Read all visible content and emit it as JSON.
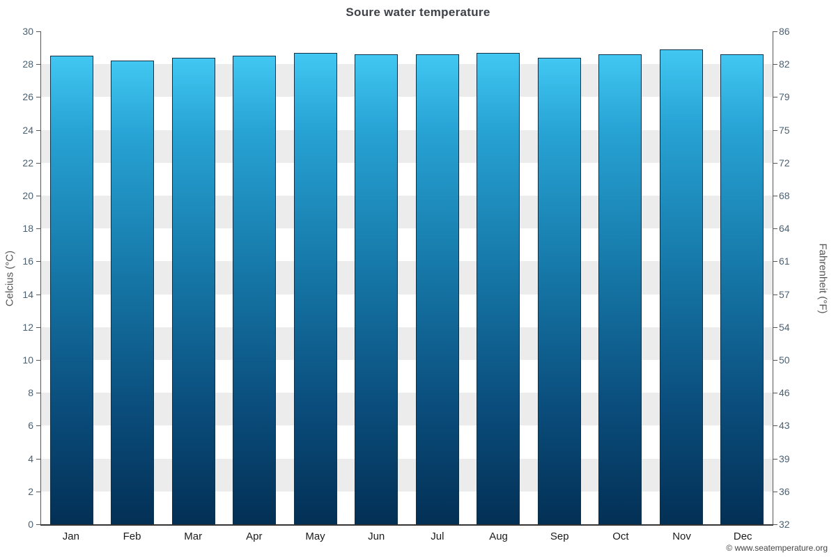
{
  "footer": "© www.seatemperature.org",
  "chart_data": {
    "type": "bar",
    "title": "Soure water temperature",
    "categories": [
      "Jan",
      "Feb",
      "Mar",
      "Apr",
      "May",
      "Jun",
      "Jul",
      "Aug",
      "Sep",
      "Oct",
      "Nov",
      "Dec"
    ],
    "values": [
      28.5,
      28.2,
      28.4,
      28.5,
      28.7,
      28.6,
      28.6,
      28.7,
      28.4,
      28.6,
      28.9,
      28.6
    ],
    "xlabel": "",
    "ylabel_left": "Celcius (°C)",
    "ylabel_right": "Fahrenheit (°F)",
    "ylim": [
      0,
      30
    ],
    "ytick_step": 2,
    "yticks_celsius": [
      0,
      2,
      4,
      6,
      8,
      10,
      12,
      14,
      16,
      18,
      20,
      22,
      24,
      26,
      28,
      30
    ],
    "yticks_fahrenheit": [
      32,
      36,
      39,
      43,
      46,
      50,
      54,
      57,
      61,
      64,
      68,
      72,
      75,
      79,
      82,
      86
    ],
    "grid": "horizontal-bands",
    "legend": "none",
    "band_color": "#ececec",
    "band_alt_color": "#ffffff",
    "bar_gradient_top": "#41c7f2",
    "bar_gradient_bottom": "#033055",
    "bar_border": "#0d3047"
  }
}
